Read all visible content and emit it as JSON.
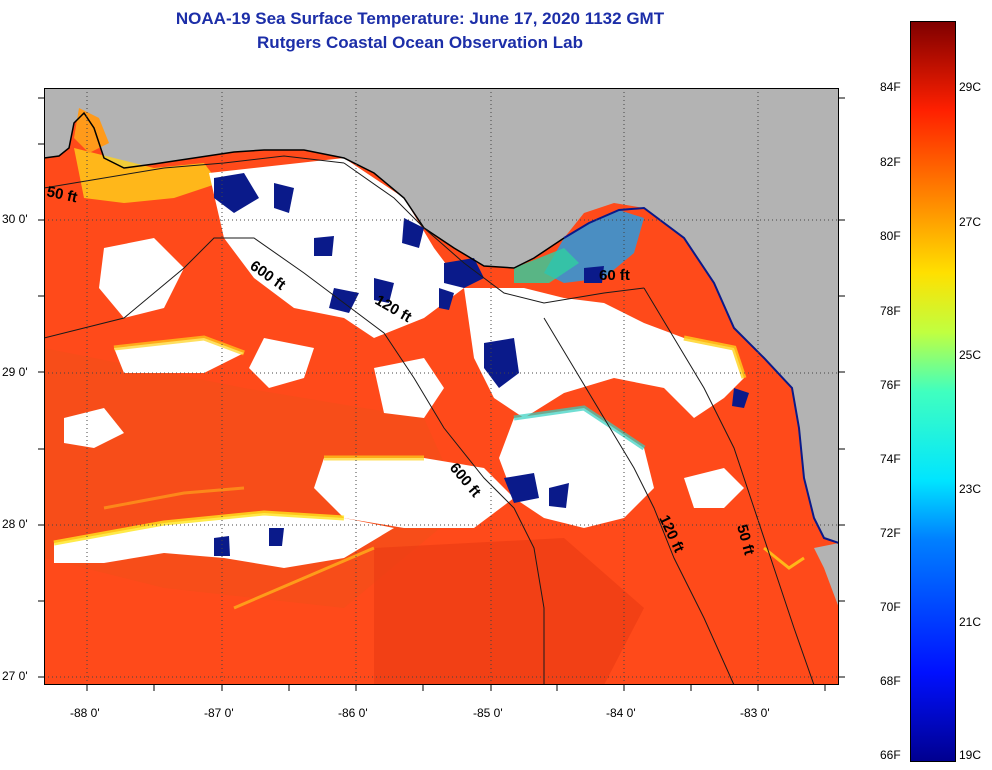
{
  "title": {
    "line1": "NOAA-19 Sea Surface Temperature:  June 17, 2020 1132 GMT",
    "line2": "Rutgers Coastal Ocean Observation Lab"
  },
  "axes": {
    "lat_labels": [
      "30 0'",
      "29 0'",
      "28 0'",
      "27 0'"
    ],
    "lon_labels": [
      "-88 0'",
      "-87 0'",
      "-86 0'",
      "-85 0'",
      "-84 0'",
      "-83 0'"
    ]
  },
  "contours": {
    "d50_west": "50 ft",
    "d600_north": "600 ft",
    "d120_north": "120 ft",
    "d60_east": "60 ft",
    "d600_south": "600 ft",
    "d120_south": "120 ft",
    "d50_south": "50 ft"
  },
  "colorbar": {
    "f_labels": [
      "84F",
      "82F",
      "80F",
      "78F",
      "76F",
      "74F",
      "72F",
      "70F",
      "68F",
      "66F"
    ],
    "c_labels": [
      "29C",
      "27C",
      "25C",
      "23C",
      "21C",
      "19C"
    ]
  },
  "colors": {
    "land": "#b3b3b3",
    "ocean": "#ff4d1a",
    "cloud": "#ffffff",
    "cold": "#0a1a8a",
    "title": "#1c2ea8"
  }
}
